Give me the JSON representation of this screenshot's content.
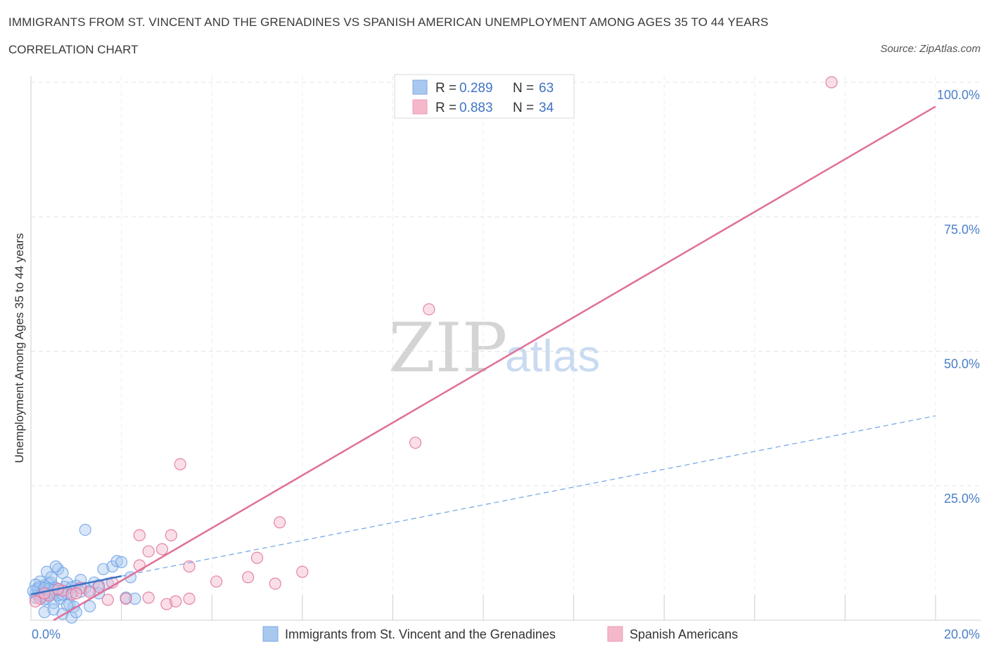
{
  "header": {
    "title": "IMMIGRANTS FROM ST. VINCENT AND THE GRENADINES VS SPANISH AMERICAN UNEMPLOYMENT AMONG AGES 35 TO 44 YEARS",
    "subtitle": "CORRELATION CHART",
    "source": "Source: ZipAtlas.com"
  },
  "watermark": {
    "zip": "ZIP",
    "atlas": "atlas"
  },
  "legend": {
    "series1": {
      "r_label": "R = ",
      "r_value": "0.289",
      "n_label": "N = ",
      "n_value": "63",
      "color": "#a8c8f0"
    },
    "series2": {
      "r_label": "R = ",
      "r_value": "0.883",
      "n_label": "N = ",
      "n_value": "34",
      "color": "#f5b8cb"
    }
  },
  "chart_data": {
    "type": "scatter",
    "title": "IMMIGRANTS FROM ST. VINCENT AND THE GRENADINES VS SPANISH AMERICAN UNEMPLOYMENT AMONG AGES 35 TO 44 YEARS",
    "xlabel": "",
    "ylabel": "Unemployment Among Ages 35 to 44 years",
    "xlim": [
      0,
      20
    ],
    "ylim": [
      0,
      100
    ],
    "x_tick_labels": [
      "0.0%",
      "20.0%"
    ],
    "y_tick_labels": [
      "25.0%",
      "50.0%",
      "75.0%",
      "100.0%"
    ],
    "y_ticks": [
      25,
      50,
      75,
      100
    ],
    "grid": true,
    "series": [
      {
        "name": "Immigrants from St. Vincent and the Grenadines",
        "color": "#6fa3e6",
        "fill": "#a8c8f0",
        "trend": {
          "x": [
            0,
            2.0
          ],
          "y": [
            4.8,
            8.2
          ],
          "style": "solid",
          "extended": {
            "x": [
              2.0,
              20
            ],
            "y": [
              8.2,
              38.0
            ],
            "style": "dashed"
          }
        },
        "points": [
          [
            0.1,
            5.0
          ],
          [
            0.15,
            6.0
          ],
          [
            0.2,
            4.5
          ],
          [
            0.25,
            5.5
          ],
          [
            0.3,
            6.5
          ],
          [
            0.35,
            4.0
          ],
          [
            0.4,
            5.2
          ],
          [
            0.45,
            7.0
          ],
          [
            0.5,
            4.8
          ],
          [
            0.55,
            6.0
          ],
          [
            0.6,
            5.5
          ],
          [
            0.1,
            4.2
          ],
          [
            0.2,
            7.2
          ],
          [
            0.3,
            3.8
          ],
          [
            0.4,
            6.8
          ],
          [
            0.5,
            3.2
          ],
          [
            0.6,
            9.5
          ],
          [
            0.7,
            8.8
          ],
          [
            0.8,
            7.0
          ],
          [
            0.9,
            5.2
          ],
          [
            0.15,
            5.8
          ],
          [
            0.25,
            4.4
          ],
          [
            0.35,
            9.0
          ],
          [
            0.45,
            8.0
          ],
          [
            0.55,
            10.0
          ],
          [
            0.65,
            4.0
          ],
          [
            0.75,
            6.2
          ],
          [
            0.85,
            3.0
          ],
          [
            0.95,
            2.5
          ],
          [
            0.3,
            1.5
          ],
          [
            0.5,
            2.0
          ],
          [
            0.7,
            1.2
          ],
          [
            0.8,
            2.8
          ],
          [
            0.9,
            0.5
          ],
          [
            1.0,
            1.5
          ],
          [
            1.1,
            7.5
          ],
          [
            1.2,
            6.0
          ],
          [
            1.3,
            5.5
          ],
          [
            1.4,
            7.0
          ],
          [
            1.5,
            6.5
          ],
          [
            1.6,
            9.5
          ],
          [
            1.7,
            6.8
          ],
          [
            1.8,
            10.0
          ],
          [
            1.9,
            11.0
          ],
          [
            2.0,
            10.8
          ],
          [
            2.2,
            8.0
          ],
          [
            2.1,
            4.2
          ],
          [
            2.3,
            4.0
          ],
          [
            1.2,
            16.8
          ],
          [
            1.3,
            2.6
          ],
          [
            0.2,
            6.2
          ],
          [
            0.4,
            5.8
          ],
          [
            0.6,
            4.6
          ],
          [
            0.8,
            5.0
          ],
          [
            1.0,
            6.4
          ],
          [
            0.1,
            6.6
          ],
          [
            0.3,
            6.0
          ],
          [
            0.5,
            5.6
          ],
          [
            0.7,
            4.8
          ],
          [
            0.9,
            6.1
          ],
          [
            1.1,
            5.3
          ],
          [
            1.5,
            5.0
          ],
          [
            0.05,
            5.4
          ]
        ]
      },
      {
        "name": "Spanish Americans",
        "color": "#e0709a",
        "fill": "#f5b8cb",
        "trend": {
          "x": [
            0.5,
            20
          ],
          "y": [
            0,
            95.5
          ],
          "style": "solid"
        },
        "points": [
          [
            17.7,
            100.0
          ],
          [
            8.8,
            57.8
          ],
          [
            8.5,
            33.0
          ],
          [
            3.3,
            29.0
          ],
          [
            5.5,
            18.2
          ],
          [
            2.4,
            15.8
          ],
          [
            3.1,
            15.8
          ],
          [
            2.9,
            13.2
          ],
          [
            2.6,
            12.8
          ],
          [
            5.0,
            11.6
          ],
          [
            2.4,
            10.2
          ],
          [
            3.5,
            10.0
          ],
          [
            4.1,
            7.2
          ],
          [
            4.8,
            8.0
          ],
          [
            6.0,
            9.0
          ],
          [
            5.4,
            6.8
          ],
          [
            1.8,
            7.0
          ],
          [
            1.5,
            6.2
          ],
          [
            1.1,
            6.0
          ],
          [
            0.7,
            5.5
          ],
          [
            0.4,
            4.6
          ],
          [
            0.2,
            4.0
          ],
          [
            0.9,
            4.8
          ],
          [
            1.3,
            5.2
          ],
          [
            1.7,
            3.8
          ],
          [
            2.1,
            4.0
          ],
          [
            2.6,
            4.2
          ],
          [
            3.0,
            3.0
          ],
          [
            3.2,
            3.5
          ],
          [
            3.5,
            4.0
          ],
          [
            0.1,
            3.5
          ],
          [
            0.6,
            5.8
          ],
          [
            1.0,
            5.0
          ],
          [
            0.3,
            5.0
          ]
        ]
      }
    ]
  },
  "bottom_legend": {
    "item1": "Immigrants from St. Vincent and the Grenadines",
    "item2": "Spanish Americans"
  }
}
